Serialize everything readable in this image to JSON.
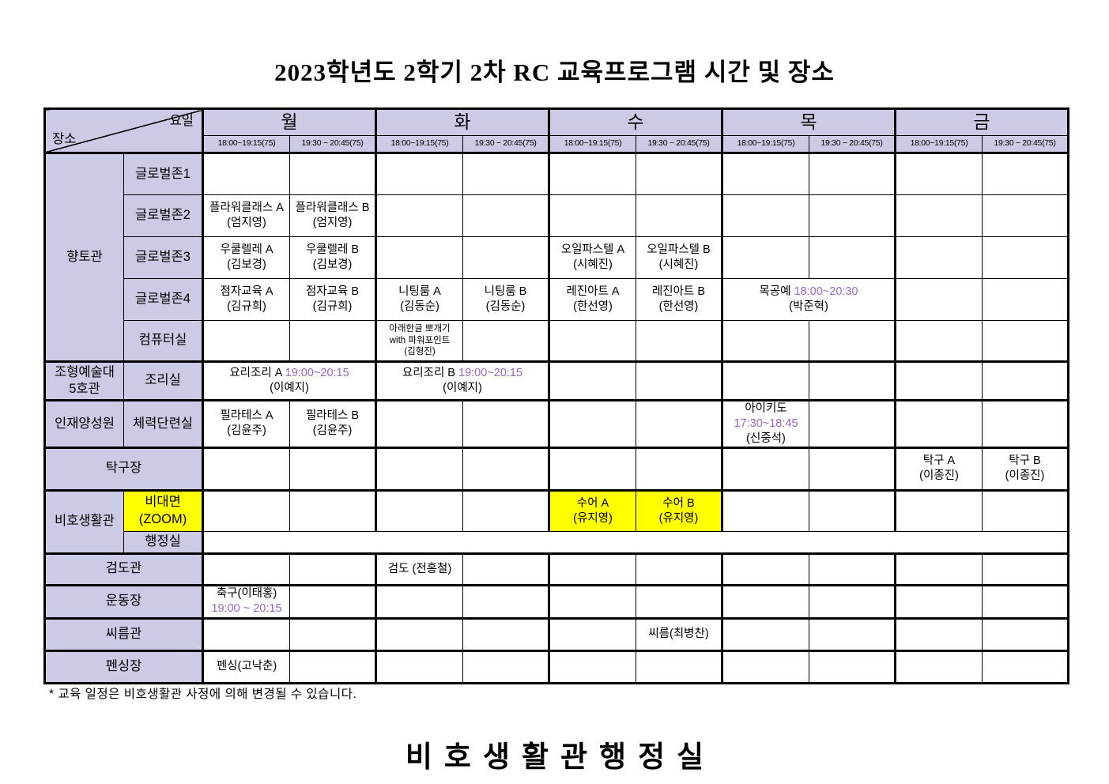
{
  "title": "2023학년도 2학기 2차 RC 교육프로그램 시간 및 장소",
  "footer": {
    "note": "* 교육 일정은 비호생활관 사정에 의해 변경될 수 있습니다.",
    "signature": "비호생활관행정실"
  },
  "colors": {
    "header_bg": "#CBCBE5",
    "highlight_bg": "#FFFF00",
    "time_accent": "#9966CC"
  },
  "table": {
    "corner": {
      "day_label": "요일",
      "place_label": "장소"
    },
    "days": [
      "월",
      "화",
      "수",
      "목",
      "금"
    ],
    "time_slot_1": "18:00~19:15(75)",
    "time_slot_2": "19:30 ~ 20:45(75)",
    "rows": [
      {
        "cells": [
          {
            "k": "corner",
            "rs": 2,
            "cs": 2,
            "n": "corner-cell"
          },
          {
            "t": [
              "월"
            ],
            "cs": 2,
            "k": "day",
            "n": "day-header-mon"
          },
          {
            "t": [
              "화"
            ],
            "cs": 2,
            "k": "day",
            "n": "day-header-tue"
          },
          {
            "t": [
              "수"
            ],
            "cs": 2,
            "k": "day",
            "n": "day-header-wed"
          },
          {
            "t": [
              "목"
            ],
            "cs": 2,
            "k": "day",
            "n": "day-header-thu"
          },
          {
            "t": [
              "금"
            ],
            "cs": 2,
            "k": "day",
            "n": "day-header-fri"
          }
        ]
      },
      {
        "cells": [
          {
            "t": [
              "18:00~19:15(75)"
            ],
            "k": "time",
            "n": "time-header-mon-1"
          },
          {
            "t": [
              "19:30 ~ 20:45(75)"
            ],
            "k": "time",
            "n": "time-header-mon-2"
          },
          {
            "t": [
              "18:00~19:15(75)"
            ],
            "k": "time",
            "n": "time-header-tue-1"
          },
          {
            "t": [
              "19:30 ~ 20:45(75)"
            ],
            "k": "time",
            "n": "time-header-tue-2"
          },
          {
            "t": [
              "18:00~19:15(75)"
            ],
            "k": "time",
            "n": "time-header-wed-1"
          },
          {
            "t": [
              "19:30 ~ 20:45(75)"
            ],
            "k": "time",
            "n": "time-header-wed-2"
          },
          {
            "t": [
              "18:00~19:15(75)"
            ],
            "k": "time",
            "n": "time-header-thu-1"
          },
          {
            "t": [
              "19:30 ~ 20:45(75)"
            ],
            "k": "time",
            "n": "time-header-thu-2"
          },
          {
            "t": [
              "18:00~19:15(75)"
            ],
            "k": "time",
            "n": "time-header-fri-1"
          },
          {
            "t": [
              "19:30 ~ 20:45(75)"
            ],
            "k": "time",
            "n": "time-header-fri-2"
          }
        ]
      },
      {
        "cells": [
          {
            "t": [
              "향토관"
            ],
            "rs": 5,
            "k": "label",
            "n": "building-hyangtogwan"
          },
          {
            "t": [
              "글로벌존1"
            ],
            "k": "label",
            "n": "room-globalzone1"
          },
          {},
          {},
          {},
          {},
          {},
          {},
          {},
          {},
          {},
          {}
        ]
      },
      {
        "cells": [
          {
            "t": [
              "글로벌존2"
            ],
            "k": "label",
            "n": "room-globalzone2"
          },
          {
            "t": [
              "플라워클래스 A",
              "(엄지영)"
            ],
            "n": "class-flower-a"
          },
          {
            "t": [
              "플라워클래스 B",
              "(엄지영)"
            ],
            "n": "class-flower-b"
          },
          {},
          {},
          {},
          {},
          {},
          {},
          {},
          {}
        ]
      },
      {
        "cells": [
          {
            "t": [
              "글로벌존3"
            ],
            "k": "label",
            "n": "room-globalzone3"
          },
          {
            "t": [
              "우쿨렐레 A",
              "(김보경)"
            ],
            "n": "class-ukulele-a"
          },
          {
            "t": [
              "우쿨렐레 B",
              "(김보경)"
            ],
            "n": "class-ukulele-b"
          },
          {},
          {},
          {
            "t": [
              "오일파스텔 A",
              "(시혜진)"
            ],
            "n": "class-oilpastel-a"
          },
          {
            "t": [
              "오일파스텔 B",
              "(시혜진)"
            ],
            "n": "class-oilpastel-b"
          },
          {},
          {},
          {},
          {}
        ]
      },
      {
        "cells": [
          {
            "t": [
              "글로벌존4"
            ],
            "k": "label",
            "n": "room-globalzone4"
          },
          {
            "t": [
              "점자교육 A",
              "(김규희)"
            ],
            "n": "class-braille-a"
          },
          {
            "t": [
              "점자교육 B",
              "(김규희)"
            ],
            "n": "class-braille-b"
          },
          {
            "t": [
              "니팅룸 A",
              "(김동순)"
            ],
            "n": "class-knitting-a"
          },
          {
            "t": [
              "니팅룸 B",
              "(김동순)"
            ],
            "n": "class-knitting-b"
          },
          {
            "t": [
              "레진아트 A",
              "(한선영)"
            ],
            "n": "class-resinart-a"
          },
          {
            "t": [
              "레진아트 B",
              "(한선영)"
            ],
            "n": "class-resinart-b"
          },
          {
            "t": [
              "목공예 {{18:00~20:30}}",
              "(박준혁)"
            ],
            "cs": 2,
            "n": "class-woodcraft"
          },
          {},
          {}
        ]
      },
      {
        "cells": [
          {
            "t": [
              "컴퓨터실"
            ],
            "k": "label",
            "n": "room-computer"
          },
          {},
          {},
          {
            "t": [
              "아래한글 뽀개기",
              "with 파워포인트",
              "(김형진)"
            ],
            "k": "xs",
            "n": "class-hangul-powerpoint"
          },
          {},
          {},
          {},
          {},
          {},
          {},
          {}
        ]
      },
      {
        "cells": [
          {
            "t": [
              "조형예술대",
              "5호관"
            ],
            "k": "label",
            "n": "building-art-hall5"
          },
          {
            "t": [
              "조리실"
            ],
            "k": "label",
            "n": "room-cooking"
          },
          {
            "t": [
              "요리조리 A {{19:00~20:15}}",
              "(이예지)"
            ],
            "cs": 2,
            "n": "class-cooking-a"
          },
          {
            "t": [
              "요리조리 B {{19:00~20:15}}",
              "(이예지)"
            ],
            "cs": 2,
            "n": "class-cooking-b"
          },
          {},
          {},
          {},
          {},
          {},
          {}
        ]
      },
      {
        "cells": [
          {
            "t": [
              "인재양성원"
            ],
            "k": "label",
            "n": "building-talent-center"
          },
          {
            "t": [
              "체력단련실"
            ],
            "k": "label",
            "n": "room-fitness"
          },
          {
            "t": [
              "필라테스 A",
              "(김윤주)"
            ],
            "n": "class-pilates-a"
          },
          {
            "t": [
              "필라테스 B",
              "(김윤주)"
            ],
            "n": "class-pilates-b"
          },
          {},
          {},
          {},
          {},
          {
            "t": [
              "아이키도 {{17:30~18:45}}",
              "(신중석)"
            ],
            "n": "class-aikido"
          },
          {},
          {},
          {}
        ]
      },
      {
        "cells": [
          {
            "t": [
              "탁구장"
            ],
            "cs": 2,
            "k": "label",
            "n": "place-tabletennis"
          },
          {},
          {},
          {},
          {},
          {},
          {},
          {},
          {},
          {
            "t": [
              "탁구 A",
              "(이종진)"
            ],
            "n": "class-tabletennis-a"
          },
          {
            "t": [
              "탁구 B",
              "(이종진)"
            ],
            "n": "class-tabletennis-b"
          }
        ]
      },
      {
        "cells": [
          {
            "t": [
              "비호생활관"
            ],
            "rs": 2,
            "k": "label",
            "n": "building-biho-dorm"
          },
          {
            "t": [
              "비대면",
              "(ZOOM)"
            ],
            "k": "label",
            "bg": "y",
            "n": "room-online-zoom"
          },
          {},
          {},
          {},
          {},
          {
            "t": [
              "수어 A",
              "(유지영)"
            ],
            "bg": "y",
            "n": "class-signlanguage-a"
          },
          {
            "t": [
              "수어 B",
              "(유지영)"
            ],
            "bg": "y",
            "n": "class-signlanguage-b"
          },
          {},
          {},
          {},
          {}
        ]
      },
      {
        "cells": [
          {
            "t": [
              "행정실"
            ],
            "k": "label",
            "n": "room-admin-office"
          },
          {
            "cs": 10,
            "n": "admin-office-empty-row"
          }
        ]
      },
      {
        "cells": [
          {
            "t": [
              "검도관"
            ],
            "cs": 2,
            "k": "label",
            "n": "place-kendo"
          },
          {},
          {},
          {
            "t": [
              "검도 (전홍철)"
            ],
            "n": "class-kendo"
          },
          {},
          {},
          {},
          {},
          {},
          {},
          {}
        ]
      },
      {
        "cells": [
          {
            "t": [
              "운동장"
            ],
            "cs": 2,
            "k": "label",
            "n": "place-field"
          },
          {
            "t": [
              "축구(이태홍)",
              "{{19:00 ~ 20:15}}"
            ],
            "n": "class-soccer"
          },
          {},
          {},
          {},
          {},
          {},
          {},
          {},
          {},
          {}
        ]
      },
      {
        "cells": [
          {
            "t": [
              "씨름관"
            ],
            "cs": 2,
            "k": "label",
            "n": "place-ssireum"
          },
          {},
          {},
          {},
          {},
          {},
          {
            "t": [
              "씨름(최병찬)"
            ],
            "n": "class-ssireum"
          },
          {},
          {},
          {},
          {}
        ]
      },
      {
        "cells": [
          {
            "t": [
              "펜싱장"
            ],
            "cs": 2,
            "k": "label",
            "n": "place-fencing"
          },
          {
            "t": [
              "펜싱(고낙춘)"
            ],
            "n": "class-fencing"
          },
          {},
          {},
          {},
          {},
          {},
          {},
          {},
          {},
          {}
        ]
      }
    ]
  }
}
